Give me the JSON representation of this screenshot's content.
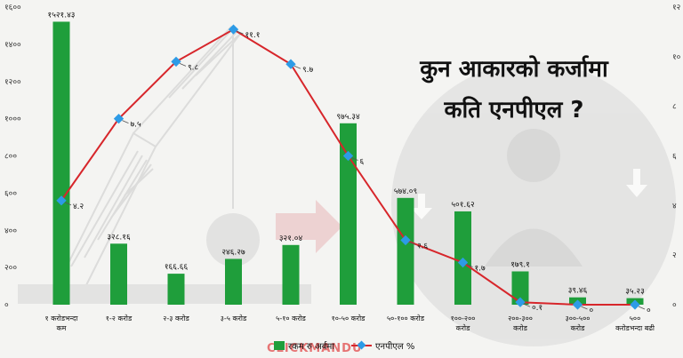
{
  "title_lines": [
    "कुन आकारको कर्जामा",
    "कति एनपीएल ?"
  ],
  "watermark": "CLICKMANDU",
  "colors": {
    "bar": "#1f9e3b",
    "line": "#d7262b",
    "marker": "#2d9be6",
    "background": "#f4f4f2",
    "decor": "#c9c9c9"
  },
  "chart_data": {
    "type": "bar",
    "categories": [
      [
        "१ करोडभन्दा",
        "कम"
      ],
      [
        "१-२ करोड"
      ],
      [
        "२-३ करोड"
      ],
      [
        "३-५ करोड"
      ],
      [
        "५-१० करोड"
      ],
      [
        "१०-५० करोड"
      ],
      [
        "५०-१०० करोड"
      ],
      [
        "१००-२००",
        "करोड"
      ],
      [
        "२००-३००",
        "करोड"
      ],
      [
        "३००-५००",
        "करोड"
      ],
      [
        "५००",
        "करोडभन्दा बढी"
      ]
    ],
    "series": [
      {
        "name": "रकम रु अर्बमा",
        "kind": "bar",
        "axis": "left",
        "values": [
          1521.43,
          328.16,
          166.66,
          246.27,
          321.04,
          975.34,
          574.09,
          501.62,
          179.1,
          39.46,
          35.23
        ],
        "labels": [
          "१५२१.४३",
          "३२८.१६",
          "१६६.६६",
          "२४६.२७",
          "३२१.०४",
          "९७५.३४",
          "५७४.०९",
          "५०१.६२",
          "१७९.१",
          "३९.४६",
          "३५.२३"
        ]
      },
      {
        "name": "एनपीएल %",
        "kind": "line",
        "axis": "right",
        "values": [
          4.2,
          7.5,
          9.8,
          11.1,
          9.7,
          6,
          2.6,
          1.7,
          0.1,
          0,
          0
        ],
        "labels": [
          "४.२",
          "७.५",
          "९.८",
          "११.१",
          "९.७",
          "६",
          "२.६",
          "१.७",
          "०.१",
          "०",
          "०"
        ]
      }
    ],
    "left_axis": {
      "ylim": [
        0,
        1600
      ],
      "ticks": [
        0,
        200,
        400,
        600,
        800,
        1000,
        1200,
        1400,
        1600
      ],
      "tick_labels": [
        "०",
        "२००",
        "४००",
        "६००",
        "८००",
        "१०००",
        "१२००",
        "१४००",
        "१६००"
      ]
    },
    "right_axis": {
      "ylim": [
        0,
        12
      ],
      "ticks": [
        0,
        2,
        4,
        6,
        8,
        10,
        12
      ],
      "tick_labels": [
        "०",
        "२",
        "४",
        "६",
        "८",
        "१०",
        "१२"
      ]
    },
    "legend": {
      "placement": "bottom-center",
      "entries": [
        "रकम रु अर्बमा",
        "एनपीएल %"
      ]
    },
    "grid": false
  }
}
